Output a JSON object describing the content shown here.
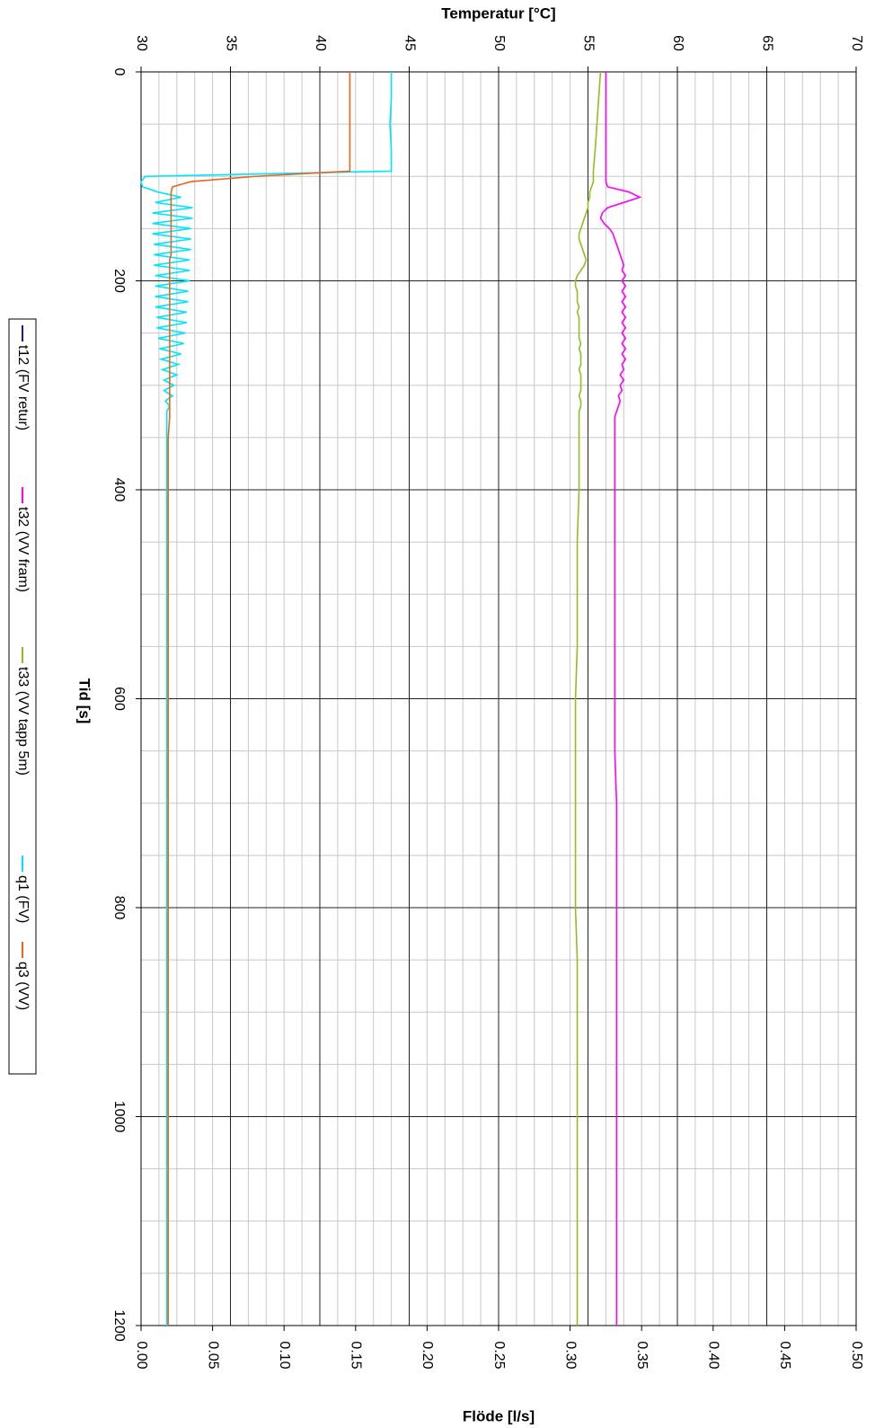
{
  "chart_data": {
    "type": "line",
    "y_title": "Temperatur [°C]",
    "y2_title": "Flöde [l/s]",
    "x_title": "Tid [s]",
    "xlim": [
      0,
      1200
    ],
    "xticks": [
      0,
      200,
      400,
      600,
      800,
      1000,
      1200
    ],
    "ylim": [
      30,
      70
    ],
    "yticks": [
      30,
      35,
      40,
      45,
      50,
      55,
      60,
      65,
      70
    ],
    "y2lim": [
      0,
      0.5
    ],
    "y2ticks": [
      {
        "value": 0,
        "label": "0.00"
      },
      0.05,
      {
        "value": 0.1,
        "label": "0.10"
      },
      0.15,
      {
        "value": 0.2,
        "label": "0.20"
      },
      0.25,
      {
        "value": 0.3,
        "label": "0.30"
      },
      0.35,
      {
        "value": 0.4,
        "label": "0.40"
      },
      0.45,
      {
        "value": 0.5,
        "label": "0.50"
      }
    ],
    "grid": true,
    "x": [
      0,
      25,
      50,
      75,
      95,
      100,
      105,
      110,
      115,
      120,
      125,
      130,
      135,
      140,
      145,
      150,
      155,
      160,
      165,
      170,
      175,
      180,
      185,
      190,
      195,
      200,
      205,
      210,
      215,
      220,
      225,
      230,
      235,
      240,
      245,
      250,
      255,
      260,
      265,
      270,
      275,
      280,
      285,
      290,
      295,
      300,
      305,
      310,
      315,
      320,
      325,
      330,
      350,
      400,
      450,
      500,
      550,
      600,
      650,
      700,
      750,
      800,
      850,
      900,
      950,
      1000,
      1050,
      1100,
      1150,
      1200
    ],
    "series": [
      {
        "name": "t12 (FV retur)",
        "color": "#1a1a80",
        "values": [
          null,
          null,
          null,
          null,
          null,
          null,
          null,
          null,
          null,
          null,
          null,
          null,
          null,
          null,
          null,
          null,
          null,
          null,
          null,
          null,
          null,
          null,
          null,
          null,
          null,
          null,
          null,
          null,
          null,
          null,
          null,
          null,
          null,
          null,
          null,
          null,
          null,
          null,
          null,
          null,
          null,
          null,
          null,
          null,
          null,
          null,
          null,
          null,
          null,
          null,
          null,
          null,
          null,
          null,
          null,
          null,
          null,
          null,
          null,
          null,
          null,
          null,
          null,
          null,
          null,
          null,
          null,
          null,
          null,
          null
        ]
      },
      {
        "name": "t32 (VV fram)",
        "color": "#ff00ff",
        "values": [
          56.0,
          56.0,
          56.0,
          56.0,
          56.0,
          56.0,
          56.0,
          56.1,
          57.3,
          57.9,
          57.0,
          56.1,
          55.8,
          55.7,
          55.9,
          56.2,
          56.4,
          56.5,
          56.6,
          56.7,
          56.8,
          56.9,
          57.0,
          56.9,
          57.1,
          56.9,
          57.1,
          56.9,
          57.1,
          56.9,
          57.1,
          56.9,
          57.1,
          56.9,
          57.1,
          56.9,
          57.1,
          56.9,
          57.1,
          56.9,
          57.1,
          56.9,
          57.0,
          56.8,
          57.0,
          56.8,
          56.9,
          56.7,
          56.8,
          56.7,
          56.6,
          56.5,
          56.5,
          56.5,
          56.5,
          56.5,
          56.5,
          56.5,
          56.5,
          56.6,
          56.6,
          56.6,
          56.6,
          56.6,
          56.6,
          56.6,
          56.6,
          56.6,
          56.6,
          56.6
        ]
      },
      {
        "name": "t33 (VV tapp 5m)",
        "color": "#8fbf1f",
        "values": [
          55.7,
          55.6,
          55.5,
          55.4,
          55.3,
          55.3,
          55.3,
          55.2,
          55.1,
          55.1,
          55.0,
          55.0,
          54.9,
          54.8,
          54.7,
          54.6,
          54.5,
          54.5,
          54.6,
          54.7,
          54.8,
          54.9,
          54.8,
          54.6,
          54.4,
          54.3,
          54.3,
          54.4,
          54.4,
          54.4,
          54.5,
          54.4,
          54.5,
          54.5,
          54.5,
          54.5,
          54.5,
          54.6,
          54.5,
          54.6,
          54.6,
          54.6,
          54.5,
          54.6,
          54.6,
          54.6,
          54.6,
          54.5,
          54.6,
          54.6,
          54.5,
          54.5,
          54.5,
          54.5,
          54.4,
          54.4,
          54.4,
          54.3,
          54.3,
          54.3,
          54.3,
          54.3,
          54.4,
          54.4,
          54.4,
          54.4,
          54.4,
          54.4,
          54.4,
          54.4
        ]
      },
      {
        "name": "q1 (FV)",
        "color": "#00e5ff",
        "axis": "y2",
        "values": [
          0.175,
          0.175,
          0.174,
          0.175,
          0.175,
          0.003,
          0.0,
          0.001,
          0.012,
          0.028,
          0.01,
          0.036,
          0.008,
          0.036,
          0.008,
          0.035,
          0.008,
          0.035,
          0.009,
          0.035,
          0.009,
          0.034,
          0.009,
          0.034,
          0.01,
          0.034,
          0.01,
          0.033,
          0.01,
          0.033,
          0.01,
          0.032,
          0.011,
          0.032,
          0.011,
          0.031,
          0.012,
          0.03,
          0.013,
          0.028,
          0.014,
          0.026,
          0.015,
          0.025,
          0.016,
          0.023,
          0.016,
          0.022,
          0.017,
          0.02,
          0.018,
          0.018,
          0.018,
          0.018,
          0.018,
          0.018,
          0.018,
          0.018,
          0.018,
          0.018,
          0.018,
          0.018,
          0.018,
          0.018,
          0.018,
          0.018,
          0.018,
          0.018,
          0.018,
          0.018
        ]
      },
      {
        "name": "q3 (VV)",
        "color": "#e8641e",
        "axis": "y2",
        "values": [
          0.146,
          0.146,
          0.146,
          0.146,
          0.146,
          0.08,
          0.035,
          0.022,
          0.021,
          0.021,
          0.021,
          0.021,
          0.021,
          0.021,
          0.021,
          0.021,
          0.021,
          0.021,
          0.021,
          0.021,
          0.021,
          0.02,
          0.02,
          0.02,
          0.02,
          0.02,
          0.02,
          0.02,
          0.02,
          0.02,
          0.02,
          0.02,
          0.02,
          0.02,
          0.02,
          0.02,
          0.02,
          0.02,
          0.02,
          0.02,
          0.02,
          0.02,
          0.02,
          0.02,
          0.02,
          0.02,
          0.02,
          0.02,
          0.02,
          0.02,
          0.02,
          0.02,
          0.019,
          0.019,
          0.019,
          0.019,
          0.019,
          0.019,
          0.019,
          0.019,
          0.019,
          0.019,
          0.019,
          0.019,
          0.019,
          0.019,
          0.019,
          0.019,
          0.019,
          0.019
        ]
      }
    ]
  }
}
